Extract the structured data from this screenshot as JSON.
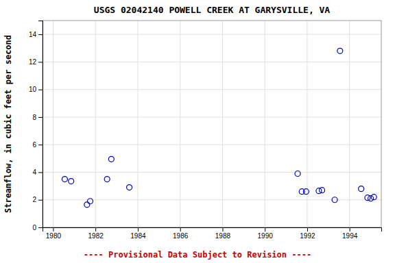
{
  "chart_data": {
    "type": "scatter",
    "title": "USGS 02042140 POWELL CREEK AT GARYSVILLE, VA",
    "ylabel": "Streamflow, in cubic feet per second",
    "x": [
      1980.55,
      1980.85,
      1981.6,
      1981.75,
      1982.55,
      1982.75,
      1983.6,
      1991.55,
      1991.75,
      1991.95,
      1992.55,
      1992.7,
      1993.3,
      1993.55,
      1994.55,
      1994.85,
      1995.0,
      1995.15
    ],
    "values": [
      3.5,
      3.35,
      1.65,
      1.9,
      3.5,
      4.95,
      2.9,
      3.9,
      2.6,
      2.6,
      2.65,
      2.7,
      2.0,
      12.8,
      2.8,
      2.15,
      2.1,
      2.2
    ],
    "color": "#0000bb",
    "marker": "open-circle",
    "xlim": [
      1979.5,
      1995.5
    ],
    "ylim": [
      0,
      15
    ],
    "xticks": [
      1980,
      1982,
      1984,
      1986,
      1988,
      1990,
      1992,
      1994
    ],
    "yticks": [
      0,
      2,
      4,
      6,
      8,
      10,
      12,
      14
    ],
    "grid": true,
    "annotations": [
      {
        "text": "---- Provisional Data Subject to Revision ----",
        "color": "#cc0000"
      }
    ]
  }
}
